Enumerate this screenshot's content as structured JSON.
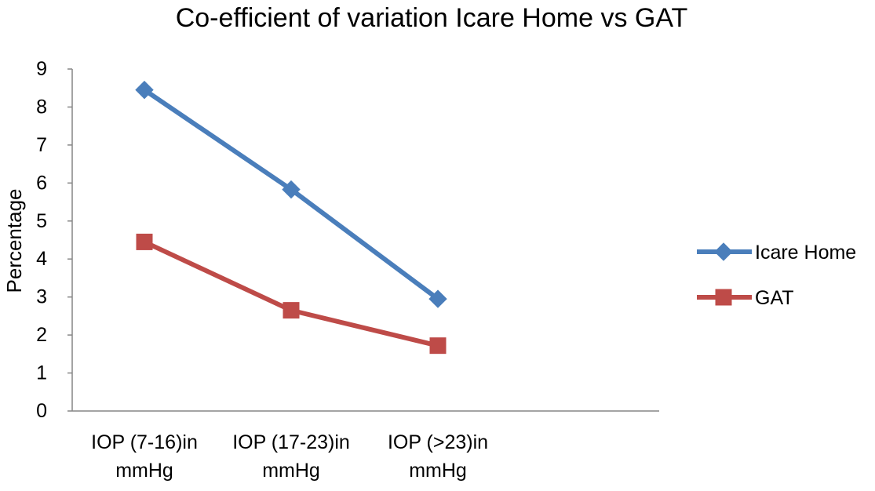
{
  "chart_data": {
    "type": "line",
    "title": "Co-efficient of variation Icare Home vs GAT",
    "xlabel": "",
    "ylabel": "Percentage",
    "categories": [
      [
        "IOP (7-16)in",
        "mmHg"
      ],
      [
        "IOP (17-23)in",
        "mmHg"
      ],
      [
        "IOP (>23)in",
        "mmHg"
      ]
    ],
    "ylim": [
      0,
      9
    ],
    "yticks": [
      0,
      1,
      2,
      3,
      4,
      5,
      6,
      7,
      8,
      9
    ],
    "grid": false,
    "legend_position": "right",
    "series": [
      {
        "name": "Icare Home",
        "values": [
          8.45,
          5.83,
          2.95
        ],
        "color": "#4A7EBB",
        "marker": "diamond"
      },
      {
        "name": "GAT",
        "values": [
          4.45,
          2.65,
          1.72
        ],
        "color": "#BE4B48",
        "marker": "square"
      }
    ]
  }
}
